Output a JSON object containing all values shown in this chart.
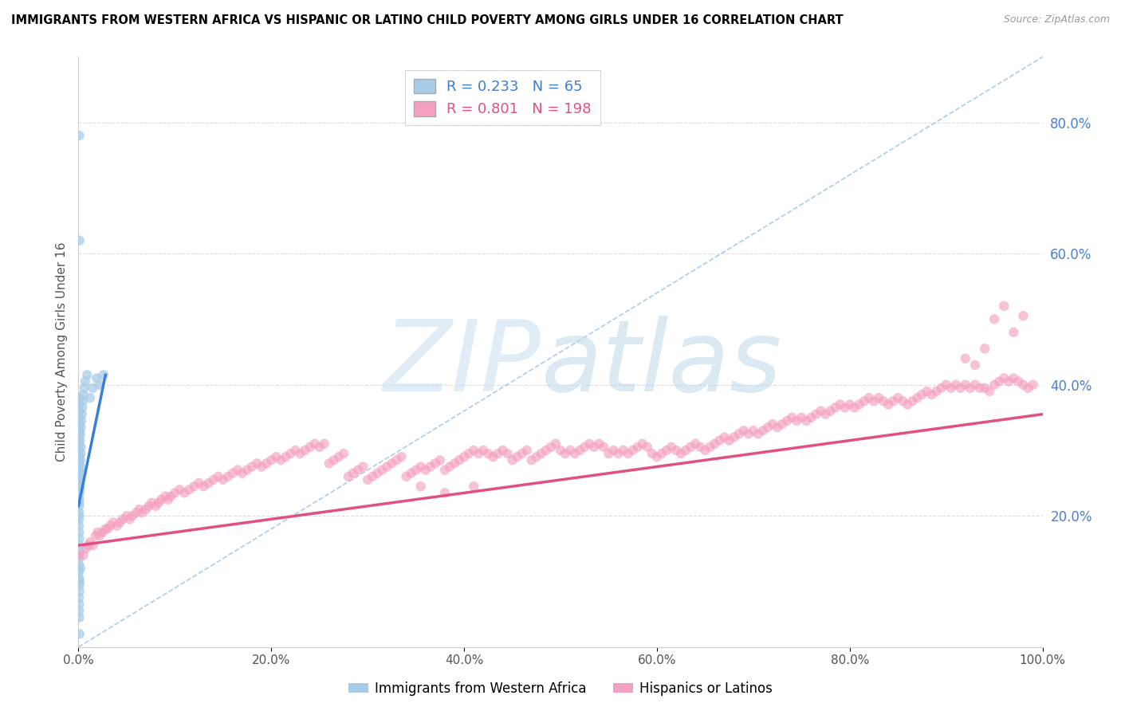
{
  "title": "IMMIGRANTS FROM WESTERN AFRICA VS HISPANIC OR LATINO CHILD POVERTY AMONG GIRLS UNDER 16 CORRELATION CHART",
  "source": "Source: ZipAtlas.com",
  "ylabel": "Child Poverty Among Girls Under 16",
  "xlim": [
    0.0,
    1.0
  ],
  "ylim": [
    0.0,
    0.9
  ],
  "xticks": [
    0.0,
    0.2,
    0.4,
    0.6,
    0.8,
    1.0
  ],
  "yticks_left": [],
  "yticks_right": [
    0.2,
    0.4,
    0.6,
    0.8
  ],
  "xticklabels": [
    "0.0%",
    "20.0%",
    "40.0%",
    "60.0%",
    "80.0%",
    "100.0%"
  ],
  "yticklabels_right": [
    "20.0%",
    "40.0%",
    "60.0%",
    "80.0%"
  ],
  "blue_R": 0.233,
  "blue_N": 65,
  "pink_R": 0.801,
  "pink_N": 198,
  "blue_color": "#a8cce8",
  "pink_color": "#f4a0c0",
  "blue_line_color": "#3a7fd5",
  "pink_line_color": "#e05080",
  "diagonal_color": "#aaccee",
  "blue_scatter": [
    [
      0.0008,
      0.78
    ],
    [
      0.001,
      0.62
    ],
    [
      0.0005,
      0.2
    ],
    [
      0.0005,
      0.22
    ],
    [
      0.0007,
      0.24
    ],
    [
      0.0008,
      0.25
    ],
    [
      0.0005,
      0.26
    ],
    [
      0.0006,
      0.27
    ],
    [
      0.0008,
      0.28
    ],
    [
      0.001,
      0.29
    ],
    [
      0.0005,
      0.3
    ],
    [
      0.0006,
      0.31
    ],
    [
      0.0007,
      0.32
    ],
    [
      0.0009,
      0.33
    ],
    [
      0.001,
      0.34
    ],
    [
      0.0012,
      0.35
    ],
    [
      0.0005,
      0.36
    ],
    [
      0.0006,
      0.37
    ],
    [
      0.0007,
      0.38
    ],
    [
      0.0005,
      0.195
    ],
    [
      0.0006,
      0.205
    ],
    [
      0.0008,
      0.215
    ],
    [
      0.001,
      0.225
    ],
    [
      0.0012,
      0.235
    ],
    [
      0.0014,
      0.245
    ],
    [
      0.0016,
      0.255
    ],
    [
      0.0018,
      0.265
    ],
    [
      0.002,
      0.275
    ],
    [
      0.0022,
      0.285
    ],
    [
      0.0024,
      0.295
    ],
    [
      0.0026,
      0.305
    ],
    [
      0.0005,
      0.185
    ],
    [
      0.0007,
      0.175
    ],
    [
      0.001,
      0.165
    ],
    [
      0.0005,
      0.155
    ],
    [
      0.0008,
      0.145
    ],
    [
      0.0005,
      0.135
    ],
    [
      0.0007,
      0.125
    ],
    [
      0.0005,
      0.115
    ],
    [
      0.0008,
      0.105
    ],
    [
      0.001,
      0.095
    ],
    [
      0.0012,
      0.085
    ],
    [
      0.0005,
      0.075
    ],
    [
      0.0007,
      0.065
    ],
    [
      0.0015,
      0.315
    ],
    [
      0.002,
      0.325
    ],
    [
      0.0025,
      0.335
    ],
    [
      0.003,
      0.345
    ],
    [
      0.0035,
      0.355
    ],
    [
      0.004,
      0.365
    ],
    [
      0.0045,
      0.375
    ],
    [
      0.005,
      0.385
    ],
    [
      0.006,
      0.395
    ],
    [
      0.007,
      0.405
    ],
    [
      0.009,
      0.415
    ],
    [
      0.012,
      0.38
    ],
    [
      0.015,
      0.395
    ],
    [
      0.019,
      0.41
    ],
    [
      0.022,
      0.4
    ],
    [
      0.026,
      0.415
    ],
    [
      0.001,
      0.02
    ],
    [
      0.0008,
      0.045
    ],
    [
      0.0006,
      0.055
    ],
    [
      0.001,
      0.1
    ],
    [
      0.002,
      0.12
    ]
  ],
  "pink_scatter": [
    [
      0.0,
      0.14
    ],
    [
      0.005,
      0.14
    ],
    [
      0.008,
      0.15
    ],
    [
      0.01,
      0.155
    ],
    [
      0.012,
      0.16
    ],
    [
      0.015,
      0.155
    ],
    [
      0.018,
      0.17
    ],
    [
      0.02,
      0.175
    ],
    [
      0.022,
      0.17
    ],
    [
      0.025,
      0.175
    ],
    [
      0.028,
      0.18
    ],
    [
      0.03,
      0.18
    ],
    [
      0.033,
      0.185
    ],
    [
      0.036,
      0.19
    ],
    [
      0.04,
      0.185
    ],
    [
      0.043,
      0.19
    ],
    [
      0.046,
      0.195
    ],
    [
      0.05,
      0.2
    ],
    [
      0.053,
      0.195
    ],
    [
      0.056,
      0.2
    ],
    [
      0.06,
      0.205
    ],
    [
      0.063,
      0.21
    ],
    [
      0.066,
      0.205
    ],
    [
      0.07,
      0.21
    ],
    [
      0.073,
      0.215
    ],
    [
      0.076,
      0.22
    ],
    [
      0.08,
      0.215
    ],
    [
      0.083,
      0.22
    ],
    [
      0.086,
      0.225
    ],
    [
      0.09,
      0.23
    ],
    [
      0.093,
      0.225
    ],
    [
      0.096,
      0.23
    ],
    [
      0.1,
      0.235
    ],
    [
      0.105,
      0.24
    ],
    [
      0.11,
      0.235
    ],
    [
      0.115,
      0.24
    ],
    [
      0.12,
      0.245
    ],
    [
      0.125,
      0.25
    ],
    [
      0.13,
      0.245
    ],
    [
      0.135,
      0.25
    ],
    [
      0.14,
      0.255
    ],
    [
      0.145,
      0.26
    ],
    [
      0.15,
      0.255
    ],
    [
      0.155,
      0.26
    ],
    [
      0.16,
      0.265
    ],
    [
      0.165,
      0.27
    ],
    [
      0.17,
      0.265
    ],
    [
      0.175,
      0.27
    ],
    [
      0.18,
      0.275
    ],
    [
      0.185,
      0.28
    ],
    [
      0.19,
      0.275
    ],
    [
      0.195,
      0.28
    ],
    [
      0.2,
      0.285
    ],
    [
      0.205,
      0.29
    ],
    [
      0.21,
      0.285
    ],
    [
      0.215,
      0.29
    ],
    [
      0.22,
      0.295
    ],
    [
      0.225,
      0.3
    ],
    [
      0.23,
      0.295
    ],
    [
      0.235,
      0.3
    ],
    [
      0.24,
      0.305
    ],
    [
      0.245,
      0.31
    ],
    [
      0.25,
      0.305
    ],
    [
      0.255,
      0.31
    ],
    [
      0.26,
      0.28
    ],
    [
      0.265,
      0.285
    ],
    [
      0.27,
      0.29
    ],
    [
      0.275,
      0.295
    ],
    [
      0.28,
      0.26
    ],
    [
      0.285,
      0.265
    ],
    [
      0.29,
      0.27
    ],
    [
      0.295,
      0.275
    ],
    [
      0.3,
      0.255
    ],
    [
      0.305,
      0.26
    ],
    [
      0.31,
      0.265
    ],
    [
      0.315,
      0.27
    ],
    [
      0.32,
      0.275
    ],
    [
      0.325,
      0.28
    ],
    [
      0.33,
      0.285
    ],
    [
      0.335,
      0.29
    ],
    [
      0.34,
      0.26
    ],
    [
      0.345,
      0.265
    ],
    [
      0.35,
      0.27
    ],
    [
      0.355,
      0.275
    ],
    [
      0.36,
      0.27
    ],
    [
      0.365,
      0.275
    ],
    [
      0.37,
      0.28
    ],
    [
      0.375,
      0.285
    ],
    [
      0.38,
      0.27
    ],
    [
      0.385,
      0.275
    ],
    [
      0.39,
      0.28
    ],
    [
      0.395,
      0.285
    ],
    [
      0.4,
      0.29
    ],
    [
      0.405,
      0.295
    ],
    [
      0.41,
      0.3
    ],
    [
      0.415,
      0.295
    ],
    [
      0.42,
      0.3
    ],
    [
      0.425,
      0.295
    ],
    [
      0.43,
      0.29
    ],
    [
      0.435,
      0.295
    ],
    [
      0.44,
      0.3
    ],
    [
      0.445,
      0.295
    ],
    [
      0.45,
      0.285
    ],
    [
      0.455,
      0.29
    ],
    [
      0.46,
      0.295
    ],
    [
      0.465,
      0.3
    ],
    [
      0.47,
      0.285
    ],
    [
      0.475,
      0.29
    ],
    [
      0.48,
      0.295
    ],
    [
      0.485,
      0.3
    ],
    [
      0.49,
      0.305
    ],
    [
      0.495,
      0.31
    ],
    [
      0.5,
      0.3
    ],
    [
      0.505,
      0.295
    ],
    [
      0.51,
      0.3
    ],
    [
      0.515,
      0.295
    ],
    [
      0.52,
      0.3
    ],
    [
      0.525,
      0.305
    ],
    [
      0.53,
      0.31
    ],
    [
      0.535,
      0.305
    ],
    [
      0.54,
      0.31
    ],
    [
      0.545,
      0.305
    ],
    [
      0.55,
      0.295
    ],
    [
      0.555,
      0.3
    ],
    [
      0.56,
      0.295
    ],
    [
      0.565,
      0.3
    ],
    [
      0.57,
      0.295
    ],
    [
      0.575,
      0.3
    ],
    [
      0.58,
      0.305
    ],
    [
      0.585,
      0.31
    ],
    [
      0.59,
      0.305
    ],
    [
      0.595,
      0.295
    ],
    [
      0.6,
      0.29
    ],
    [
      0.605,
      0.295
    ],
    [
      0.61,
      0.3
    ],
    [
      0.615,
      0.305
    ],
    [
      0.62,
      0.3
    ],
    [
      0.625,
      0.295
    ],
    [
      0.63,
      0.3
    ],
    [
      0.635,
      0.305
    ],
    [
      0.64,
      0.31
    ],
    [
      0.645,
      0.305
    ],
    [
      0.65,
      0.3
    ],
    [
      0.655,
      0.305
    ],
    [
      0.66,
      0.31
    ],
    [
      0.665,
      0.315
    ],
    [
      0.67,
      0.32
    ],
    [
      0.675,
      0.315
    ],
    [
      0.68,
      0.32
    ],
    [
      0.685,
      0.325
    ],
    [
      0.69,
      0.33
    ],
    [
      0.695,
      0.325
    ],
    [
      0.7,
      0.33
    ],
    [
      0.705,
      0.325
    ],
    [
      0.71,
      0.33
    ],
    [
      0.715,
      0.335
    ],
    [
      0.72,
      0.34
    ],
    [
      0.725,
      0.335
    ],
    [
      0.73,
      0.34
    ],
    [
      0.735,
      0.345
    ],
    [
      0.74,
      0.35
    ],
    [
      0.745,
      0.345
    ],
    [
      0.75,
      0.35
    ],
    [
      0.755,
      0.345
    ],
    [
      0.76,
      0.35
    ],
    [
      0.765,
      0.355
    ],
    [
      0.77,
      0.36
    ],
    [
      0.775,
      0.355
    ],
    [
      0.78,
      0.36
    ],
    [
      0.785,
      0.365
    ],
    [
      0.79,
      0.37
    ],
    [
      0.795,
      0.365
    ],
    [
      0.8,
      0.37
    ],
    [
      0.805,
      0.365
    ],
    [
      0.81,
      0.37
    ],
    [
      0.815,
      0.375
    ],
    [
      0.82,
      0.38
    ],
    [
      0.825,
      0.375
    ],
    [
      0.83,
      0.38
    ],
    [
      0.835,
      0.375
    ],
    [
      0.84,
      0.37
    ],
    [
      0.845,
      0.375
    ],
    [
      0.85,
      0.38
    ],
    [
      0.855,
      0.375
    ],
    [
      0.86,
      0.37
    ],
    [
      0.865,
      0.375
    ],
    [
      0.87,
      0.38
    ],
    [
      0.875,
      0.385
    ],
    [
      0.88,
      0.39
    ],
    [
      0.885,
      0.385
    ],
    [
      0.89,
      0.39
    ],
    [
      0.895,
      0.395
    ],
    [
      0.9,
      0.4
    ],
    [
      0.905,
      0.395
    ],
    [
      0.91,
      0.4
    ],
    [
      0.915,
      0.395
    ],
    [
      0.92,
      0.4
    ],
    [
      0.925,
      0.395
    ],
    [
      0.93,
      0.4
    ],
    [
      0.935,
      0.395
    ],
    [
      0.94,
      0.395
    ],
    [
      0.945,
      0.39
    ],
    [
      0.95,
      0.4
    ],
    [
      0.955,
      0.405
    ],
    [
      0.96,
      0.41
    ],
    [
      0.965,
      0.405
    ],
    [
      0.97,
      0.41
    ],
    [
      0.975,
      0.405
    ],
    [
      0.98,
      0.4
    ],
    [
      0.985,
      0.395
    ],
    [
      0.99,
      0.4
    ],
    [
      0.95,
      0.5
    ],
    [
      0.96,
      0.52
    ],
    [
      0.97,
      0.48
    ],
    [
      0.98,
      0.505
    ],
    [
      0.94,
      0.455
    ],
    [
      0.93,
      0.43
    ],
    [
      0.92,
      0.44
    ],
    [
      0.355,
      0.245
    ],
    [
      0.38,
      0.235
    ],
    [
      0.41,
      0.245
    ]
  ]
}
